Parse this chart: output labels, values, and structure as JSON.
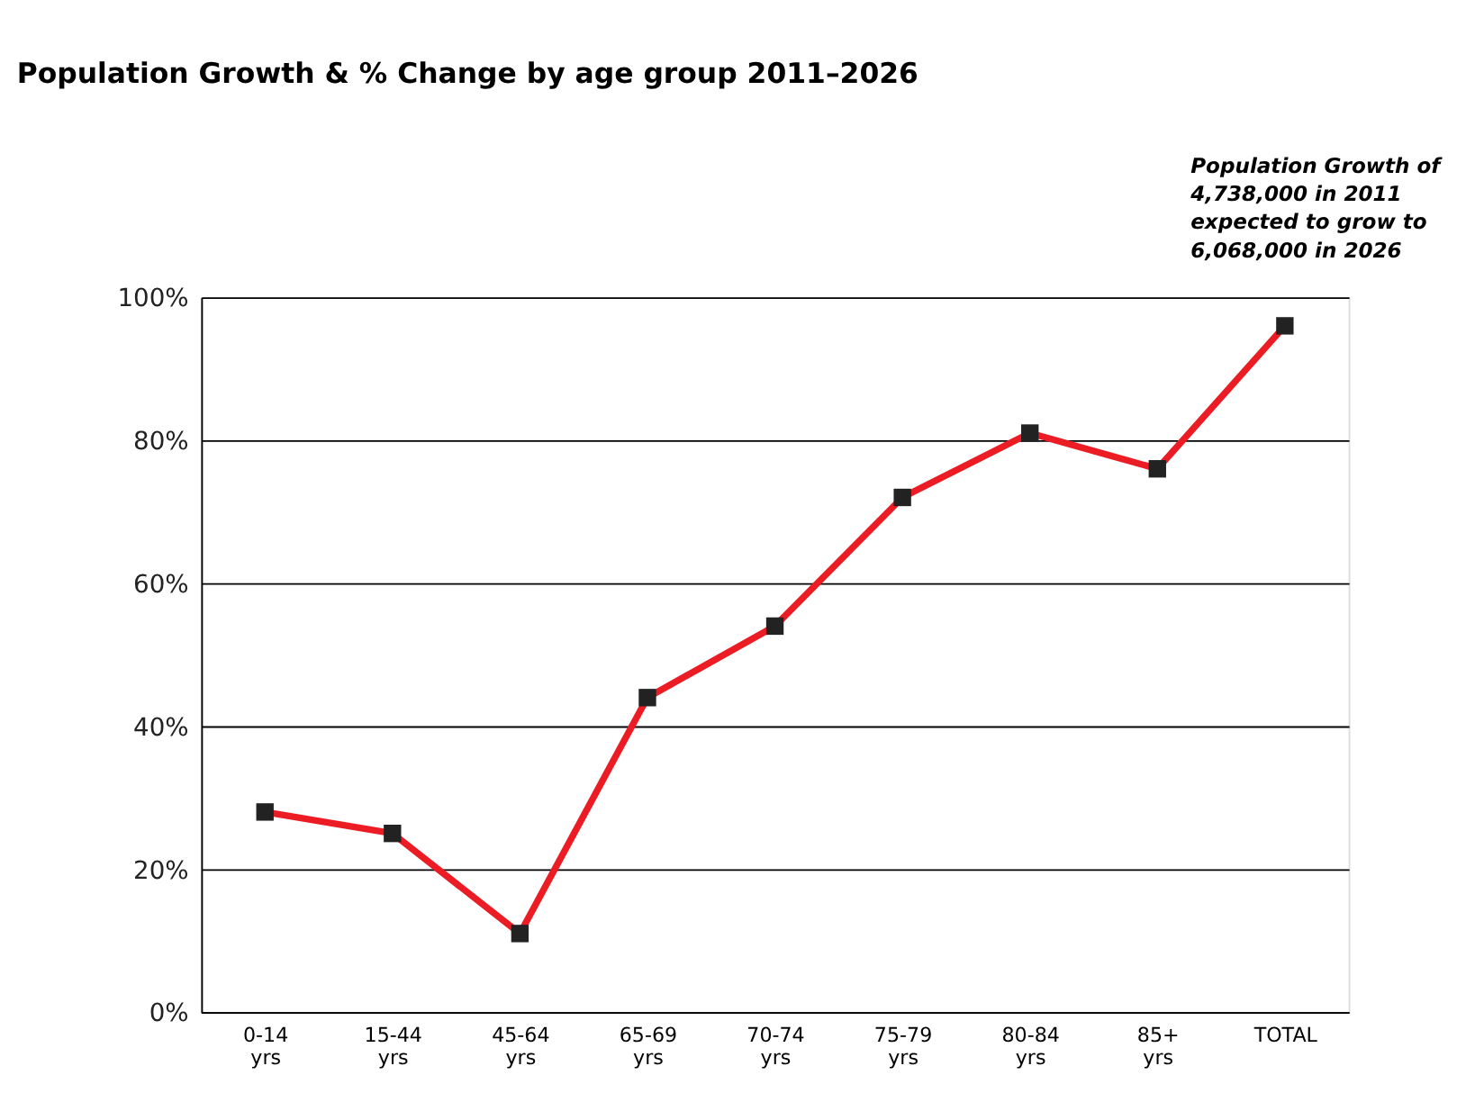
{
  "chart_data": {
    "type": "line",
    "title": "Population Growth & % Change by age group 2011–2026",
    "annotations": [
      "Population Growth of 4,738,000 in 2011 expected to grow to 6,068,000 in 2026"
    ],
    "categories": [
      "0-14 yrs",
      "15-44 yrs",
      "45-64 yrs",
      "65-69 yrs",
      "70-74 yrs",
      "75-79 yrs",
      "80-84 yrs",
      "85+ yrs",
      "TOTAL"
    ],
    "series": [
      {
        "color": "#ec1c24",
        "values": [
          28,
          25,
          11,
          44,
          54,
          72,
          81,
          76,
          96
        ]
      }
    ],
    "ylim": [
      0,
      100
    ],
    "yticks": [
      {
        "value": 0,
        "label": "0%"
      },
      {
        "value": 20,
        "label": "20%"
      },
      {
        "value": 40,
        "label": "40%"
      },
      {
        "value": 60,
        "label": "60%"
      },
      {
        "value": 80,
        "label": "80%"
      },
      {
        "value": 100,
        "label": "100%"
      }
    ],
    "grid": "y",
    "marker": "square",
    "line_style": "solid"
  }
}
